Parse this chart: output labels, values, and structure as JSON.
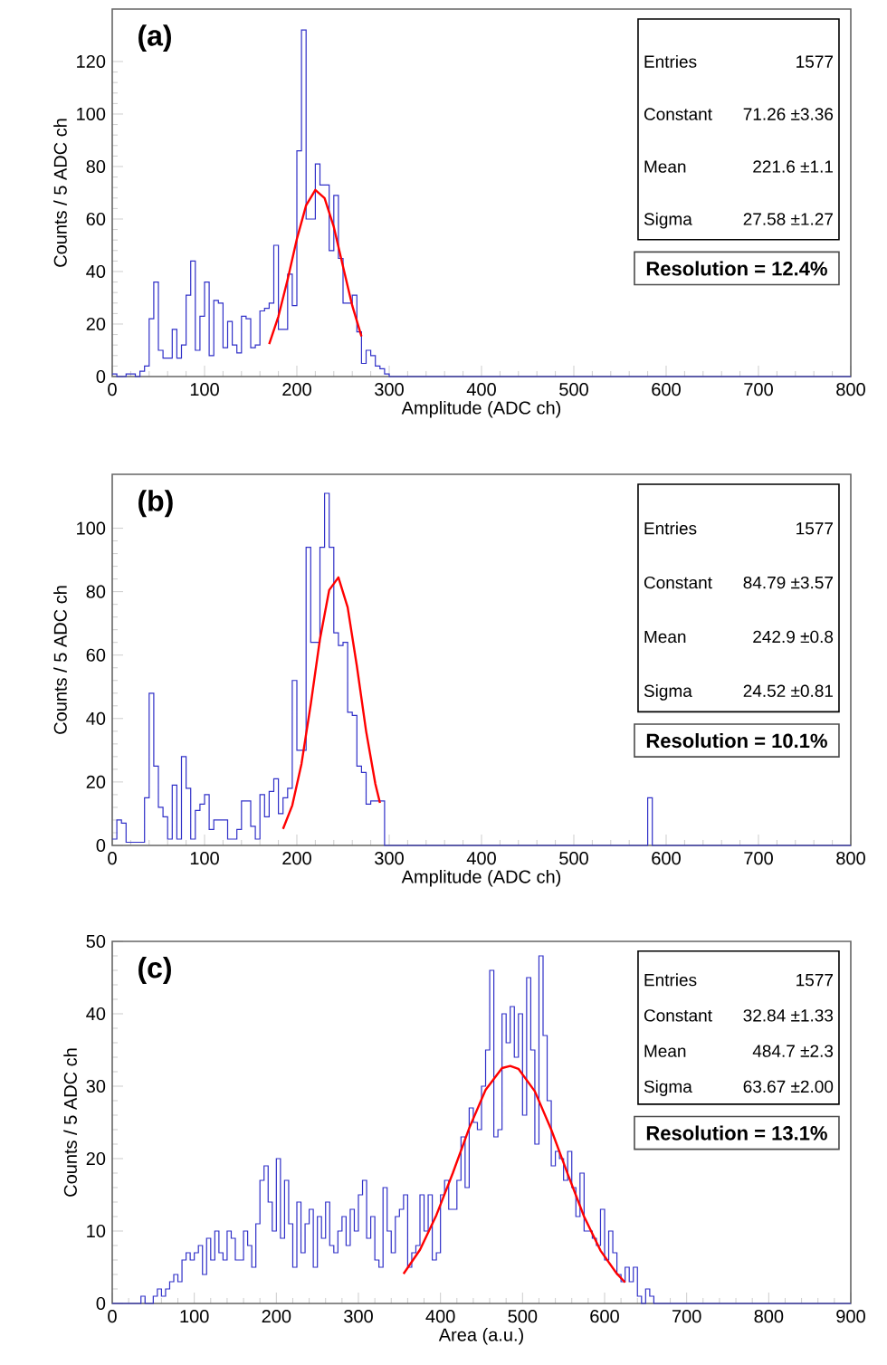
{
  "chart_data": [
    {
      "type": "histogram",
      "xlabel": "Amplitude (ADC ch)",
      "ylabel": "Counts / 5 ADC ch",
      "xlim": [
        0,
        800
      ],
      "ylim": [
        0,
        140
      ],
      "xticks": [
        0,
        100,
        200,
        300,
        400,
        500,
        600,
        700,
        800
      ],
      "yticks": [
        0,
        20,
        40,
        60,
        80,
        100,
        120
      ],
      "annotations": [
        "(a)",
        "Entries",
        "1577",
        "Constant",
        "71.26 ±3.36",
        "Mean",
        "221.6 ±1.1",
        "Sigma",
        "27.58 ±1.27",
        "Resolution = 12.4%"
      ],
      "series": [
        {
          "color": "#3030c8",
          "bins": [
            0,
            5,
            10,
            15,
            20,
            25,
            30,
            35,
            40,
            45,
            50,
            55,
            60,
            65,
            70,
            75,
            80,
            85,
            90,
            95,
            100,
            105,
            110,
            115,
            120,
            125,
            130,
            135,
            140,
            145,
            150,
            155,
            160,
            165,
            170,
            175,
            180,
            185,
            190,
            195,
            200,
            205,
            210,
            215,
            220,
            225,
            230,
            235,
            240,
            245,
            250,
            255,
            260,
            265,
            270,
            275,
            280,
            285,
            290,
            295,
            300,
            800
          ],
          "values": [
            1,
            0,
            0,
            1,
            1,
            0,
            2,
            4,
            22,
            36,
            10,
            7,
            7,
            18,
            7,
            12,
            31,
            44,
            10,
            23,
            36,
            8,
            29,
            28,
            11,
            21,
            12,
            9,
            23,
            22,
            11,
            12,
            25,
            26,
            28,
            50,
            18,
            18,
            39,
            27,
            86,
            132,
            60,
            60,
            81,
            73,
            73,
            48,
            69,
            45,
            28,
            28,
            31,
            17,
            5,
            10,
            8,
            4,
            3,
            1,
            0
          ]
        },
        {
          "type": "line",
          "color": "#ff0000",
          "x": [
            170,
            180,
            190,
            200,
            210,
            220,
            230,
            240,
            250,
            260,
            270
          ],
          "values": [
            12.4,
            22.9,
            37.0,
            52.4,
            65.2,
            71.1,
            68.0,
            57.0,
            41.9,
            27.0,
            15.3
          ]
        }
      ]
    },
    {
      "type": "histogram",
      "xlabel": "Amplitude (ADC ch)",
      "ylabel": "Counts / 5 ADC ch",
      "xlim": [
        0,
        800
      ],
      "ylim": [
        0,
        117
      ],
      "xticks": [
        0,
        100,
        200,
        300,
        400,
        500,
        600,
        700,
        800
      ],
      "yticks": [
        0,
        20,
        40,
        60,
        80,
        100
      ],
      "annotations": [
        "(b)",
        "Entries",
        "1577",
        "Constant",
        "84.79 ±3.57",
        "Mean",
        "242.9 ±0.8",
        "Sigma",
        "24.52 ±0.81",
        "Resolution = 10.1%"
      ],
      "series": [
        {
          "color": "#3030c8",
          "bins": [
            0,
            5,
            10,
            15,
            20,
            25,
            30,
            35,
            40,
            45,
            50,
            55,
            60,
            65,
            70,
            75,
            80,
            85,
            90,
            95,
            100,
            105,
            110,
            115,
            120,
            125,
            130,
            135,
            140,
            145,
            150,
            155,
            160,
            165,
            170,
            175,
            180,
            185,
            190,
            195,
            200,
            205,
            210,
            215,
            220,
            225,
            230,
            235,
            240,
            245,
            250,
            255,
            260,
            265,
            270,
            275,
            280,
            285,
            290,
            295,
            300,
            580,
            585,
            800
          ],
          "values": [
            2,
            8,
            7,
            1,
            1,
            1,
            1,
            15,
            48,
            25,
            12,
            9,
            2,
            19,
            2,
            28,
            18,
            2,
            11,
            13,
            16,
            5,
            8,
            8,
            8,
            2,
            2,
            5,
            14,
            14,
            6,
            2,
            16,
            9,
            17,
            21,
            10,
            15,
            18,
            52,
            30,
            30,
            94,
            64,
            64,
            94,
            111,
            94,
            67,
            63,
            64,
            42,
            41,
            25,
            23,
            13,
            14,
            14,
            14,
            0,
            0,
            15,
            0
          ]
        },
        {
          "type": "line",
          "color": "#ff0000",
          "x": [
            185,
            195,
            205,
            215,
            225,
            235,
            245,
            255,
            265,
            275,
            285,
            290
          ],
          "values": [
            5.2,
            12.6,
            25.7,
            44.4,
            65.0,
            80.5,
            84.5,
            75.1,
            56.5,
            36.0,
            19.4,
            13.4
          ]
        }
      ]
    },
    {
      "type": "histogram",
      "xlabel": "Area (a.u.)",
      "ylabel": "Counts / 5 ADC ch",
      "xlim": [
        0,
        900
      ],
      "ylim": [
        0,
        50
      ],
      "xticks": [
        0,
        100,
        200,
        300,
        400,
        500,
        600,
        700,
        800,
        900
      ],
      "yticks": [
        0,
        10,
        20,
        30,
        40,
        50
      ],
      "annotations": [
        "(c)",
        "Entries",
        "1577",
        "Constant",
        "32.84 ±1.33",
        "Mean",
        "484.7 ±2.3",
        "Sigma",
        "63.67 ±2.00",
        "Resolution = 13.1%"
      ],
      "series": [
        {
          "color": "#3030c8",
          "bins": [
            0,
            30,
            35,
            40,
            45,
            50,
            55,
            60,
            65,
            70,
            75,
            80,
            85,
            90,
            95,
            100,
            105,
            110,
            115,
            120,
            125,
            130,
            135,
            140,
            145,
            150,
            155,
            160,
            165,
            170,
            175,
            180,
            185,
            190,
            195,
            200,
            205,
            210,
            215,
            220,
            225,
            230,
            235,
            240,
            245,
            250,
            255,
            260,
            265,
            270,
            275,
            280,
            285,
            290,
            295,
            300,
            305,
            310,
            315,
            320,
            325,
            330,
            335,
            340,
            345,
            350,
            355,
            360,
            365,
            370,
            375,
            380,
            385,
            390,
            395,
            400,
            405,
            410,
            415,
            420,
            425,
            430,
            435,
            440,
            445,
            450,
            455,
            460,
            465,
            470,
            475,
            480,
            485,
            490,
            495,
            500,
            505,
            510,
            515,
            520,
            525,
            530,
            535,
            540,
            545,
            550,
            555,
            560,
            565,
            570,
            575,
            580,
            585,
            590,
            595,
            600,
            605,
            610,
            615,
            620,
            625,
            630,
            635,
            640,
            645,
            650,
            655,
            660,
            665,
            900
          ],
          "values": [
            0,
            0,
            1,
            0,
            0,
            1,
            2,
            1,
            2,
            3,
            4,
            3,
            6,
            7,
            6,
            7,
            8,
            4,
            9,
            6,
            10,
            7,
            6,
            10,
            9,
            6,
            6,
            10,
            8,
            5,
            11,
            17,
            19,
            14,
            10,
            20,
            9,
            17,
            11,
            5,
            14,
            7,
            11,
            13,
            5,
            12,
            9,
            14,
            8,
            7,
            10,
            12,
            8,
            13,
            10,
            15,
            17,
            9,
            12,
            6,
            5,
            16,
            10,
            7,
            12,
            13,
            15,
            5,
            7,
            8,
            15,
            10,
            15,
            6,
            7,
            15,
            17,
            13,
            13,
            17,
            23,
            16,
            27,
            25,
            24,
            30,
            35,
            46,
            23,
            24,
            40,
            36,
            41,
            34,
            40,
            26,
            45,
            35,
            22,
            48,
            37,
            28,
            19,
            21,
            20,
            17,
            21,
            16,
            12,
            18,
            10,
            10,
            9,
            8,
            13,
            6,
            10,
            7,
            4,
            3,
            5,
            3,
            5,
            1,
            0,
            2,
            1,
            0,
            0
          ]
        },
        {
          "type": "line",
          "color": "#ff0000",
          "x": [
            355,
            375,
            395,
            415,
            435,
            455,
            475,
            485,
            495,
            515,
            535,
            555,
            575,
            595,
            615,
            625
          ],
          "values": [
            4.1,
            7.4,
            12.2,
            18.0,
            24.2,
            29.5,
            32.5,
            32.8,
            32.4,
            29.3,
            24.0,
            17.9,
            12.0,
            7.3,
            4.1,
            2.9
          ]
        }
      ]
    }
  ]
}
